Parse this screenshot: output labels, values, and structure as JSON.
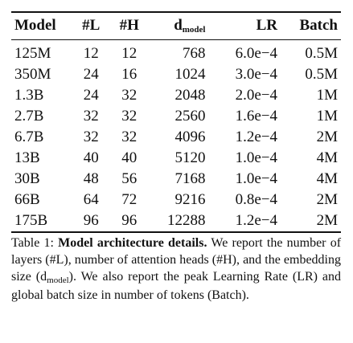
{
  "table": {
    "headers": {
      "model": "Model",
      "layers": "#L",
      "heads": "#H",
      "d_main": "d",
      "d_sub": "model",
      "lr": "LR",
      "batch": "Batch"
    },
    "rows": [
      [
        "125M",
        "12",
        "12",
        "768",
        "6.0e−4",
        "0.5M"
      ],
      [
        "350M",
        "24",
        "16",
        "1024",
        "3.0e−4",
        "0.5M"
      ],
      [
        "1.3B",
        "24",
        "32",
        "2048",
        "2.0e−4",
        "1M"
      ],
      [
        "2.7B",
        "32",
        "32",
        "2560",
        "1.6e−4",
        "1M"
      ],
      [
        "6.7B",
        "32",
        "32",
        "4096",
        "1.2e−4",
        "2M"
      ],
      [
        "13B",
        "40",
        "40",
        "5120",
        "1.0e−4",
        "4M"
      ],
      [
        "30B",
        "48",
        "56",
        "7168",
        "1.0e−4",
        "4M"
      ],
      [
        "66B",
        "64",
        "72",
        "9216",
        "0.8e−4",
        "2M"
      ],
      [
        "175B",
        "96",
        "96",
        "12288",
        "1.2e−4",
        "2M"
      ]
    ]
  },
  "caption": {
    "label": "Table 1:",
    "title": "Model architecture details.",
    "text_1": "We report the number of layers (#L), number of attention heads (#H), and the embedding size (d",
    "sub": "model",
    "text_2": "). We also report the peak Learning Rate (LR) and global batch size in number of tokens (Batch)."
  }
}
